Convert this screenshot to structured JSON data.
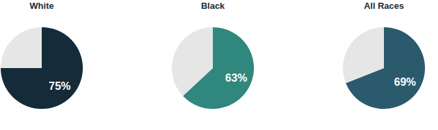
{
  "chart_data": [
    {
      "type": "pie",
      "title": "White",
      "values": [
        75,
        25
      ],
      "colors": [
        "#152b3a",
        "#e6e6e6"
      ],
      "value_labels": [
        "75%",
        null
      ],
      "data_labels": true
    },
    {
      "type": "pie",
      "title": "Black",
      "values": [
        63,
        37
      ],
      "colors": [
        "#2f877d",
        "#e6e6e6"
      ],
      "value_labels": [
        "63%",
        null
      ],
      "data_labels": true
    },
    {
      "type": "pie",
      "title": "All Races",
      "values": [
        69,
        31
      ],
      "colors": [
        "#2b5a6d",
        "#e6e6e6"
      ],
      "value_labels": [
        "69%",
        null
      ],
      "data_labels": true
    }
  ]
}
